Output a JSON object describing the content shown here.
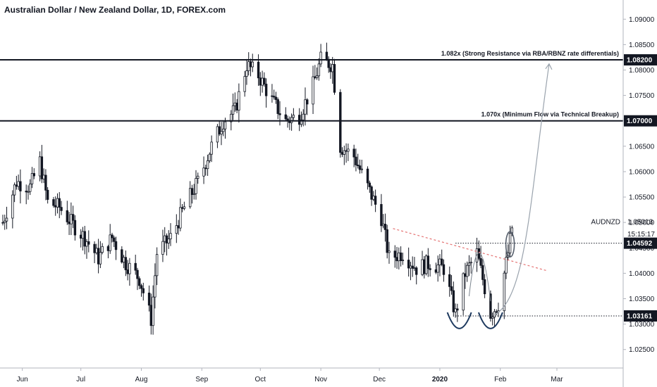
{
  "title": "Australian Dollar / New Zealand Dollar, 1D, FOREX.com",
  "chart_data": {
    "type": "candlestick",
    "symbol": "AUDNZD",
    "y_ticks": [
      "1.09000",
      "1.08500",
      "1.08000",
      "1.07500",
      "1.07000",
      "1.06500",
      "1.06000",
      "1.05500",
      "1.05000",
      "1.04500",
      "1.04000",
      "1.03500",
      "1.03000",
      "1.02500"
    ],
    "ylim": [
      1.0215,
      1.0935
    ],
    "x_ticks": [
      {
        "label": "Jun",
        "date": "2019-06-01"
      },
      {
        "label": "Jul",
        "date": "2019-07-01"
      },
      {
        "label": "Aug",
        "date": "2019-08-01"
      },
      {
        "label": "Sep",
        "date": "2019-09-01"
      },
      {
        "label": "Oct",
        "date": "2019-10-01"
      },
      {
        "label": "Nov",
        "date": "2019-11-01"
      },
      {
        "label": "Dec",
        "date": "2019-12-01"
      },
      {
        "label": "2020",
        "date": "2020-01-01",
        "bold": true
      },
      {
        "label": "Feb",
        "date": "2020-02-01"
      },
      {
        "label": "Mar",
        "date": "2020-03-01"
      }
    ],
    "close_path": [
      [
        "2019-05-22",
        1.05
      ],
      [
        "2019-05-29",
        1.058
      ],
      [
        "2019-06-05",
        1.057
      ],
      [
        "2019-06-10",
        1.062
      ],
      [
        "2019-06-14",
        1.054
      ],
      [
        "2019-06-20",
        1.053
      ],
      [
        "2019-06-26",
        1.05
      ],
      [
        "2019-07-03",
        1.047
      ],
      [
        "2019-07-10",
        1.043
      ],
      [
        "2019-07-17",
        1.047
      ],
      [
        "2019-07-24",
        1.042
      ],
      [
        "2019-07-31",
        1.039
      ],
      [
        "2019-08-06",
        1.031
      ],
      [
        "2019-08-09",
        1.044
      ],
      [
        "2019-08-16",
        1.047
      ],
      [
        "2019-08-23",
        1.053
      ],
      [
        "2019-08-30",
        1.058
      ],
      [
        "2019-09-06",
        1.065
      ],
      [
        "2019-09-12",
        1.07
      ],
      [
        "2019-09-18",
        1.072
      ],
      [
        "2019-09-24",
        1.081
      ],
      [
        "2019-09-30",
        1.079
      ],
      [
        "2019-10-07",
        1.074
      ],
      [
        "2019-10-14",
        1.07
      ],
      [
        "2019-10-21",
        1.071
      ],
      [
        "2019-10-28",
        1.077
      ],
      [
        "2019-11-01",
        1.082
      ],
      [
        "2019-11-07",
        1.081
      ],
      [
        "2019-11-11",
        1.065
      ],
      [
        "2019-11-18",
        1.063
      ],
      [
        "2019-11-25",
        1.057
      ],
      [
        "2019-12-02",
        1.051
      ],
      [
        "2019-12-06",
        1.043
      ],
      [
        "2019-12-13",
        1.044
      ],
      [
        "2019-12-20",
        1.041
      ],
      [
        "2019-12-27",
        1.042
      ],
      [
        "2020-01-03",
        1.041
      ],
      [
        "2020-01-09",
        1.032
      ],
      [
        "2020-01-14",
        1.04
      ],
      [
        "2020-01-20",
        1.044
      ],
      [
        "2020-01-27",
        1.032
      ],
      [
        "2020-01-31",
        1.034
      ],
      [
        "2020-02-05",
        1.044
      ],
      [
        "2020-02-07",
        1.049
      ]
    ],
    "annotations": [
      {
        "level": 1.082,
        "label": "1.082x (Strong Resistance via RBA/RBNZ rate differentials)",
        "price_tag": "1.08200"
      },
      {
        "level": 1.07,
        "label": "1.070x (Minimum Flow via Technical Breakup)",
        "price_tag": "1.07000"
      }
    ],
    "dotted_levels": [
      {
        "level": 1.04592,
        "price_tag": "1.04592"
      },
      {
        "level": 1.03161,
        "price_tag": "1.03161"
      }
    ],
    "current_price": {
      "symbol": "AUDNZD",
      "value": "1.05013",
      "countdown": "15:15:17"
    },
    "colors": {
      "candle": "#131722",
      "resistance_line": "#131722",
      "trendline": "#e57373",
      "arrow": "#9aa3ad",
      "ellipse": "#555e6b",
      "cup": "#1e3a5f"
    }
  }
}
